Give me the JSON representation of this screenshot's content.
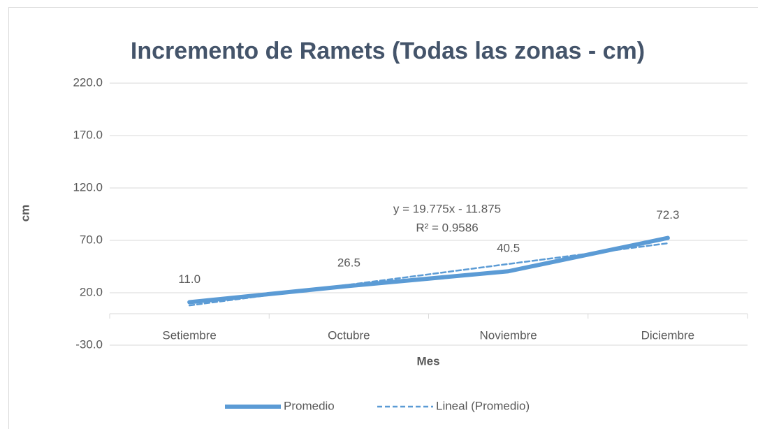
{
  "chart_data": {
    "type": "line",
    "title": "Incremento de Ramets (Todas las zonas - cm)",
    "x_label": "Mes",
    "y_label": "cm",
    "categories": [
      "Setiembre",
      "Octubre",
      "Noviembre",
      "Diciembre"
    ],
    "series": [
      {
        "name": "Promedio",
        "color": "#5b9bd5",
        "values": [
          11.0,
          26.5,
          40.5,
          72.3
        ],
        "value_labels": [
          "11.0",
          "26.5",
          "40.5",
          "72.3"
        ]
      },
      {
        "name": "Lineal (Promedio)",
        "color": "#5b9bd5",
        "dashed": true,
        "values": [
          7.9,
          27.675,
          47.45,
          67.225
        ]
      }
    ],
    "annotations": [
      "y = 19.775x - 11.875",
      "R² = 0.9586"
    ],
    "ylim": [
      -30,
      220
    ],
    "yticks": [
      {
        "value": -30,
        "label": "-30.0"
      },
      {
        "value": 20,
        "label": "20.0"
      },
      {
        "value": 70,
        "label": "70.0"
      },
      {
        "value": 120,
        "label": "120.0"
      },
      {
        "value": 170,
        "label": "170.0"
      },
      {
        "value": 220,
        "label": "220.0"
      }
    ],
    "grid": true,
    "legend": "bottom"
  }
}
